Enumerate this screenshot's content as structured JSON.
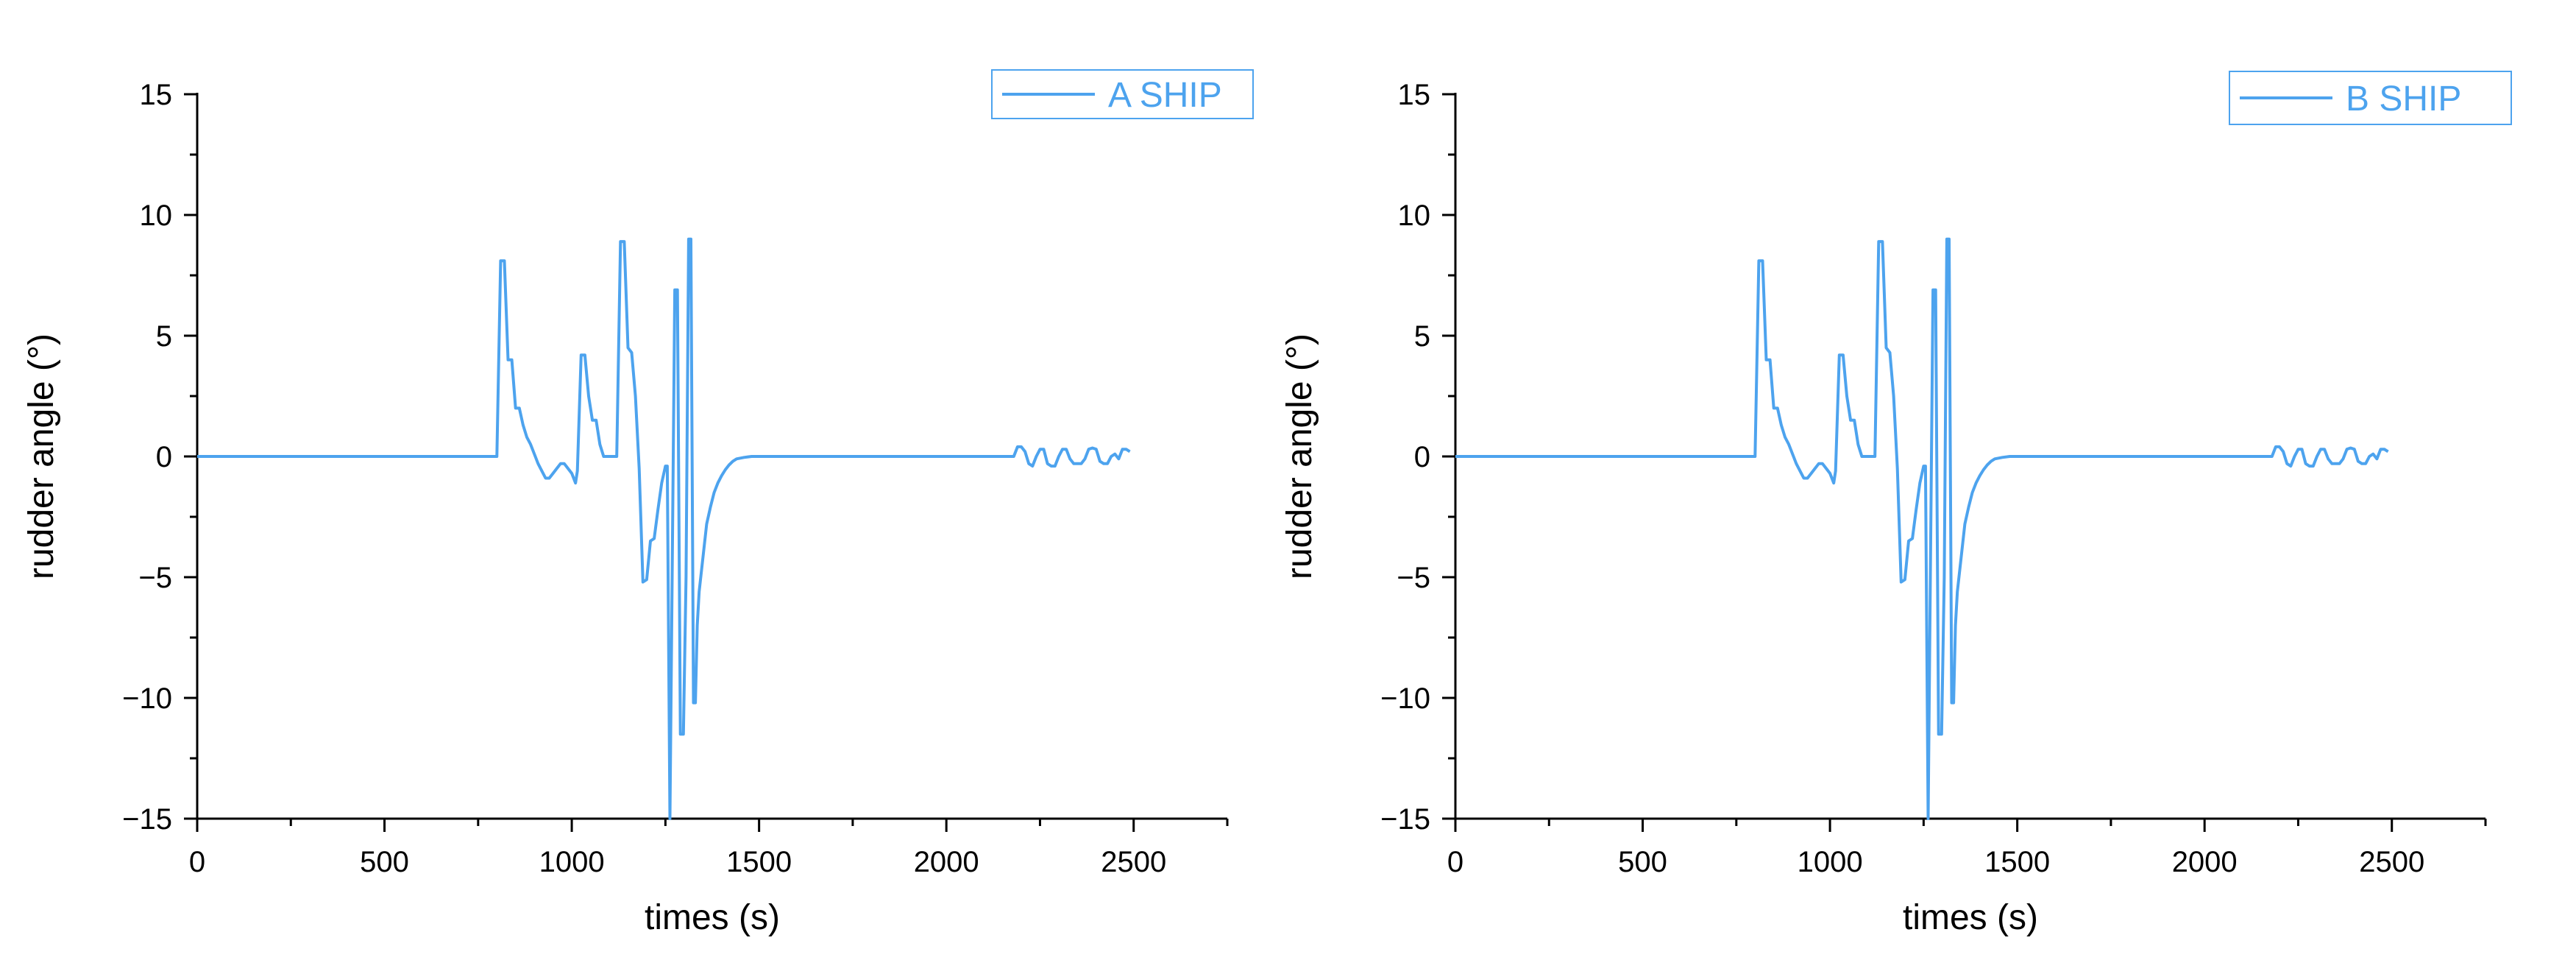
{
  "colors": {
    "series": "#4da3ee",
    "axis": "#000000",
    "legend_border": "#4da3ee",
    "background": "#ffffff"
  },
  "chart_data": [
    {
      "type": "line",
      "xlabel": "times (s)",
      "ylabel": "rudder angle (°)",
      "xlim": [
        0,
        2750
      ],
      "ylim": [
        -15,
        15
      ],
      "xticks": [
        0,
        500,
        1000,
        1500,
        2000,
        2500
      ],
      "yticks": [
        15,
        10,
        5,
        0,
        -5,
        -10,
        -15
      ],
      "xtick_labels": [
        "0",
        "500",
        "1000",
        "1500",
        "2000",
        "2500"
      ],
      "ytick_labels": [
        "15",
        "10",
        "5",
        "0",
        "−5",
        "−10",
        "−15"
      ],
      "legend": "top-right",
      "grid": false,
      "series": [
        {
          "name": "A SHIP",
          "x": [
            0,
            800,
            810,
            820,
            830,
            840,
            850,
            860,
            870,
            880,
            890,
            900,
            910,
            920,
            930,
            940,
            950,
            960,
            970,
            980,
            990,
            1000,
            1010,
            1015,
            1025,
            1035,
            1045,
            1055,
            1065,
            1075,
            1085,
            1095,
            1105,
            1120,
            1130,
            1140,
            1150,
            1160,
            1170,
            1180,
            1190,
            1200,
            1210,
            1220,
            1230,
            1240,
            1250,
            1255,
            1262,
            1268,
            1275,
            1282,
            1290,
            1298,
            1305,
            1312,
            1318,
            1325,
            1330,
            1335,
            1340,
            1350,
            1360,
            1370,
            1380,
            1390,
            1400,
            1410,
            1420,
            1430,
            1440,
            1460,
            1480,
            1500,
            1550,
            1600,
            2180,
            2190,
            2200,
            2210,
            2220,
            2230,
            2240,
            2250,
            2260,
            2270,
            2280,
            2290,
            2300,
            2310,
            2320,
            2330,
            2340,
            2350,
            2360,
            2370,
            2380,
            2390,
            2400,
            2410,
            2420,
            2430,
            2440,
            2450,
            2460,
            2470,
            2480,
            2490
          ],
          "y": [
            0,
            0,
            8.1,
            8.1,
            4.0,
            4.0,
            2.0,
            2.0,
            1.3,
            0.8,
            0.5,
            0.1,
            -0.3,
            -0.6,
            -0.9,
            -0.9,
            -0.7,
            -0.5,
            -0.3,
            -0.3,
            -0.5,
            -0.7,
            -1.1,
            -0.6,
            4.2,
            4.2,
            2.5,
            1.5,
            1.5,
            0.5,
            0,
            0,
            0,
            0,
            8.9,
            8.9,
            4.5,
            4.3,
            2.5,
            -0.5,
            -5.2,
            -5.1,
            -3.5,
            -3.4,
            -2.2,
            -1.1,
            -0.4,
            -0.4,
            -15,
            -5.0,
            6.9,
            6.9,
            -11.5,
            -11.5,
            -5.0,
            9.0,
            9.0,
            -10.2,
            -10.2,
            -7.0,
            -5.6,
            -4.2,
            -2.8,
            -2.1,
            -1.5,
            -1.1,
            -0.8,
            -0.55,
            -0.35,
            -0.2,
            -0.1,
            -0.04,
            0,
            0,
            0,
            0,
            0,
            0.4,
            0.4,
            0.2,
            -0.3,
            -0.4,
            0,
            0.3,
            0.3,
            -0.3,
            -0.4,
            -0.4,
            0,
            0.3,
            0.3,
            -0.1,
            -0.3,
            -0.3,
            -0.3,
            -0.1,
            0.3,
            0.35,
            0.3,
            -0.2,
            -0.3,
            -0.3,
            0,
            0.1,
            -0.1,
            0.3,
            0.3,
            0.2
          ]
        }
      ]
    },
    {
      "type": "line",
      "xlabel": "times (s)",
      "ylabel": "rudder angle (°)",
      "xlim": [
        0,
        2750
      ],
      "ylim": [
        -15,
        15
      ],
      "xticks": [
        0,
        500,
        1000,
        1500,
        2000,
        2500
      ],
      "yticks": [
        15,
        10,
        5,
        0,
        -5,
        -10,
        -15
      ],
      "xtick_labels": [
        "0",
        "500",
        "1000",
        "1500",
        "2000",
        "2500"
      ],
      "ytick_labels": [
        "15",
        "10",
        "5",
        "0",
        "−5",
        "−10",
        "−15"
      ],
      "legend": "top-right",
      "grid": false,
      "series": [
        {
          "name": "B SHIP",
          "x": [
            0,
            800,
            810,
            820,
            830,
            840,
            850,
            860,
            870,
            880,
            890,
            900,
            910,
            920,
            930,
            940,
            950,
            960,
            970,
            980,
            990,
            1000,
            1010,
            1015,
            1025,
            1035,
            1045,
            1055,
            1065,
            1075,
            1085,
            1095,
            1105,
            1120,
            1130,
            1140,
            1150,
            1160,
            1170,
            1180,
            1190,
            1200,
            1210,
            1220,
            1230,
            1240,
            1250,
            1255,
            1262,
            1268,
            1275,
            1282,
            1290,
            1298,
            1305,
            1312,
            1318,
            1325,
            1330,
            1335,
            1340,
            1350,
            1360,
            1370,
            1380,
            1390,
            1400,
            1410,
            1420,
            1430,
            1440,
            1460,
            1480,
            1500,
            1550,
            1600,
            2180,
            2190,
            2200,
            2210,
            2220,
            2230,
            2240,
            2250,
            2260,
            2270,
            2280,
            2290,
            2300,
            2310,
            2320,
            2330,
            2340,
            2350,
            2360,
            2370,
            2380,
            2390,
            2400,
            2410,
            2420,
            2430,
            2440,
            2450,
            2460,
            2470,
            2480,
            2490
          ],
          "y": [
            0,
            0,
            8.1,
            8.1,
            4.0,
            4.0,
            2.0,
            2.0,
            1.3,
            0.8,
            0.5,
            0.1,
            -0.3,
            -0.6,
            -0.9,
            -0.9,
            -0.7,
            -0.5,
            -0.3,
            -0.3,
            -0.5,
            -0.7,
            -1.1,
            -0.6,
            4.2,
            4.2,
            2.5,
            1.5,
            1.5,
            0.5,
            0,
            0,
            0,
            0,
            8.9,
            8.9,
            4.5,
            4.3,
            2.5,
            -0.5,
            -5.2,
            -5.1,
            -3.5,
            -3.4,
            -2.2,
            -1.1,
            -0.4,
            -0.4,
            -15,
            -5.0,
            6.9,
            6.9,
            -11.5,
            -11.5,
            -5.0,
            9.0,
            9.0,
            -10.2,
            -10.2,
            -7.0,
            -5.6,
            -4.2,
            -2.8,
            -2.1,
            -1.5,
            -1.1,
            -0.8,
            -0.55,
            -0.35,
            -0.2,
            -0.1,
            -0.04,
            0,
            0,
            0,
            0,
            0,
            0.4,
            0.4,
            0.2,
            -0.3,
            -0.4,
            0,
            0.3,
            0.3,
            -0.3,
            -0.4,
            -0.4,
            0,
            0.3,
            0.3,
            -0.1,
            -0.3,
            -0.3,
            -0.3,
            -0.1,
            0.3,
            0.35,
            0.3,
            -0.2,
            -0.3,
            -0.3,
            0,
            0.1,
            -0.1,
            0.3,
            0.3,
            0.2
          ]
        }
      ]
    }
  ]
}
